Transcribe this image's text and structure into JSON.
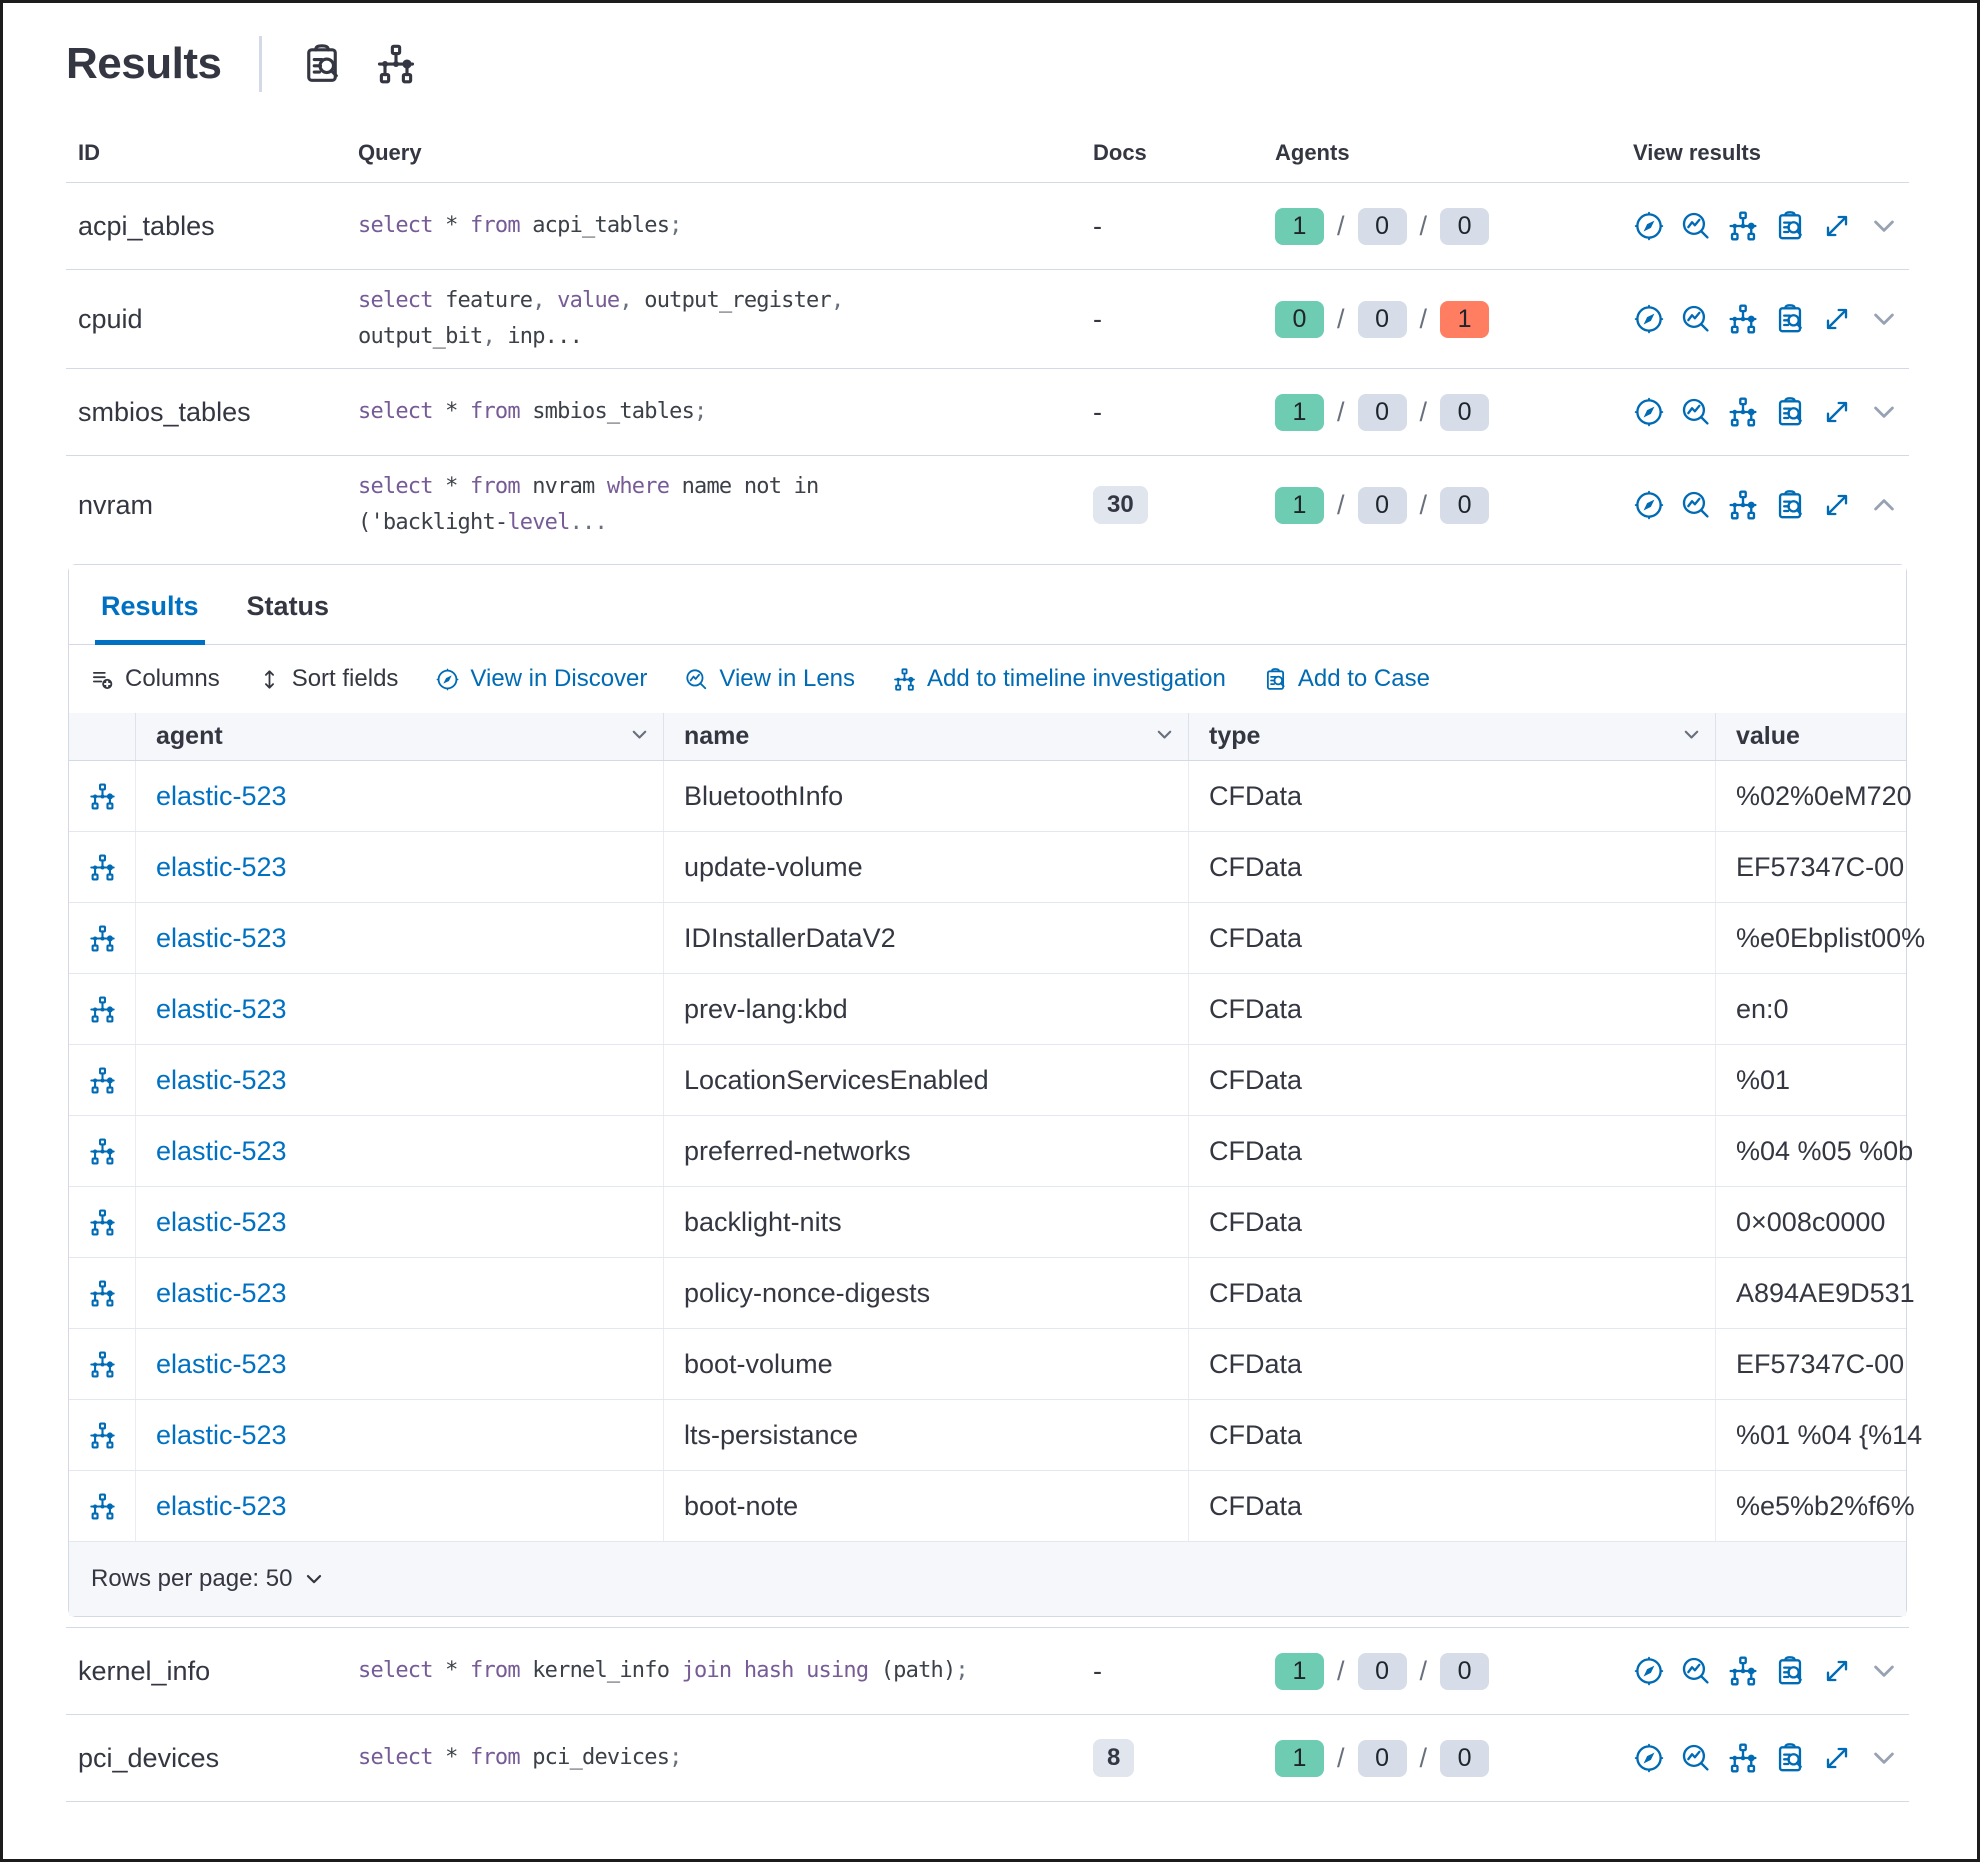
{
  "page": {
    "title": "Results"
  },
  "query_table": {
    "columns": {
      "id": "ID",
      "query": "Query",
      "docs": "Docs",
      "agents": "Agents",
      "view_results": "View results"
    },
    "rows": [
      {
        "id": "acpi_tables",
        "query": [
          [
            "select",
            "kw"
          ],
          [
            " * ",
            "pl"
          ],
          [
            "from",
            "kw"
          ],
          [
            " acpi_tables",
            "pl"
          ],
          [
            ";",
            "pu"
          ]
        ],
        "docs": "-",
        "docs_badge": false,
        "agents": [
          {
            "value": "1",
            "color": "green"
          },
          {
            "value": "0",
            "color": "gray"
          },
          {
            "value": "0",
            "color": "gray"
          }
        ],
        "expanded": false
      },
      {
        "id": "cpuid",
        "query": [
          [
            "select",
            "kw"
          ],
          [
            " feature",
            "pl"
          ],
          [
            ",",
            "pu"
          ],
          [
            " ",
            "pl"
          ],
          [
            "value",
            "kw"
          ],
          [
            ",",
            "pu"
          ],
          [
            " output_register",
            "pl"
          ],
          [
            ",",
            "pu"
          ],
          [
            "",
            "br"
          ],
          [
            "output_bit",
            "pl"
          ],
          [
            ",",
            "pu"
          ],
          [
            " inp...",
            "pl"
          ]
        ],
        "docs": "-",
        "docs_badge": false,
        "agents": [
          {
            "value": "0",
            "color": "green"
          },
          {
            "value": "0",
            "color": "gray"
          },
          {
            "value": "1",
            "color": "red"
          }
        ],
        "expanded": false
      },
      {
        "id": "smbios_tables",
        "query": [
          [
            "select",
            "kw"
          ],
          [
            " * ",
            "pl"
          ],
          [
            "from",
            "kw"
          ],
          [
            " smbios_tables",
            "pl"
          ],
          [
            ";",
            "pu"
          ]
        ],
        "docs": "-",
        "docs_badge": false,
        "agents": [
          {
            "value": "1",
            "color": "green"
          },
          {
            "value": "0",
            "color": "gray"
          },
          {
            "value": "0",
            "color": "gray"
          }
        ],
        "expanded": false
      },
      {
        "id": "nvram",
        "query": [
          [
            "select",
            "kw"
          ],
          [
            " * ",
            "pl"
          ],
          [
            "from",
            "kw"
          ],
          [
            " nvram ",
            "pl"
          ],
          [
            "where",
            "kw"
          ],
          [
            " name not in",
            "pl"
          ],
          [
            "",
            "br"
          ],
          [
            "('backlight-",
            "pl"
          ],
          [
            "level",
            "kw"
          ],
          [
            "...",
            "pu"
          ]
        ],
        "docs": "30",
        "docs_badge": true,
        "agents": [
          {
            "value": "1",
            "color": "green"
          },
          {
            "value": "0",
            "color": "gray"
          },
          {
            "value": "0",
            "color": "gray"
          }
        ],
        "expanded": true
      },
      {
        "id": "kernel_info",
        "query": [
          [
            "select",
            "kw"
          ],
          [
            " * ",
            "pl"
          ],
          [
            "from",
            "kw"
          ],
          [
            " kernel_info ",
            "pl"
          ],
          [
            "join",
            "kw"
          ],
          [
            " ",
            "pl"
          ],
          [
            "hash",
            "kw"
          ],
          [
            " ",
            "pl"
          ],
          [
            "using",
            "kw"
          ],
          [
            " (path)",
            "pl"
          ],
          [
            ";",
            "pu"
          ]
        ],
        "docs": "-",
        "docs_badge": false,
        "agents": [
          {
            "value": "1",
            "color": "green"
          },
          {
            "value": "0",
            "color": "gray"
          },
          {
            "value": "0",
            "color": "gray"
          }
        ],
        "expanded": false
      },
      {
        "id": "pci_devices",
        "query": [
          [
            "select",
            "kw"
          ],
          [
            " * ",
            "pl"
          ],
          [
            "from",
            "kw"
          ],
          [
            " pci_devices",
            "pl"
          ],
          [
            ";",
            "pu"
          ]
        ],
        "docs": "8",
        "docs_badge": true,
        "agents": [
          {
            "value": "1",
            "color": "green"
          },
          {
            "value": "0",
            "color": "gray"
          },
          {
            "value": "0",
            "color": "gray"
          }
        ],
        "expanded": false
      }
    ]
  },
  "panel": {
    "tabs": {
      "results": "Results",
      "status": "Status"
    },
    "toolbar": {
      "columns": "Columns",
      "sort_fields": "Sort fields",
      "view_in_discover": "View in Discover",
      "view_in_lens": "View in Lens",
      "add_to_timeline": "Add to timeline investigation",
      "add_to_case": "Add to Case"
    },
    "grid": {
      "columns": {
        "agent": "agent",
        "name": "name",
        "type": "type",
        "value": "value"
      },
      "rows": [
        {
          "agent": "elastic-523",
          "name": "BluetoothInfo",
          "type": "CFData",
          "value": "%02%0eM720"
        },
        {
          "agent": "elastic-523",
          "name": "update-volume",
          "type": "CFData",
          "value": "EF57347C-00"
        },
        {
          "agent": "elastic-523",
          "name": "IDInstallerDataV2",
          "type": "CFData",
          "value": "%e0Ebplist00%"
        },
        {
          "agent": "elastic-523",
          "name": "prev-lang:kbd",
          "type": "CFData",
          "value": "en:0"
        },
        {
          "agent": "elastic-523",
          "name": "LocationServicesEnabled",
          "type": "CFData",
          "value": "%01"
        },
        {
          "agent": "elastic-523",
          "name": "preferred-networks",
          "type": "CFData",
          "value": "%04 %05 %0b"
        },
        {
          "agent": "elastic-523",
          "name": "backlight-nits",
          "type": "CFData",
          "value": "0×008c0000"
        },
        {
          "agent": "elastic-523",
          "name": "policy-nonce-digests",
          "type": "CFData",
          "value": "A894AE9D531"
        },
        {
          "agent": "elastic-523",
          "name": "boot-volume",
          "type": "CFData",
          "value": "EF57347C-00"
        },
        {
          "agent": "elastic-523",
          "name": "lts-persistance",
          "type": "CFData",
          "value": "%01 %04 {%14"
        },
        {
          "agent": "elastic-523",
          "name": "boot-note",
          "type": "CFData",
          "value": "%e5%b2%f6%"
        }
      ],
      "footer": {
        "rows_per_page": "Rows per page: 50"
      }
    }
  },
  "colors": {
    "primary_blue": "#0071C2",
    "icon_blue": "#006BB4",
    "badge_green": "#6DCCB1",
    "badge_gray": "#D6DCE8",
    "badge_red": "#FF7E62",
    "code_keyword": "#765B96",
    "border": "#D3DAE6",
    "text": "#343741"
  }
}
